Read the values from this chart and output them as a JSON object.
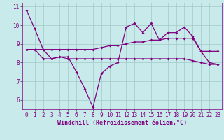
{
  "line1": [
    10.8,
    9.8,
    8.7,
    8.2,
    8.3,
    8.3,
    7.5,
    6.6,
    5.6,
    7.4,
    7.8,
    8.0,
    9.9,
    10.1,
    9.6,
    10.1,
    9.2,
    9.6,
    9.6,
    9.9,
    9.4,
    8.6,
    8.0,
    7.9
  ],
  "line2": [
    8.7,
    8.7,
    8.7,
    8.7,
    8.7,
    8.7,
    8.7,
    8.7,
    8.7,
    8.8,
    8.9,
    8.9,
    9.0,
    9.1,
    9.1,
    9.2,
    9.2,
    9.3,
    9.3,
    9.3,
    9.3,
    8.6,
    8.6,
    8.6
  ],
  "line3": [
    8.7,
    8.7,
    8.2,
    8.2,
    8.3,
    8.2,
    8.2,
    8.2,
    8.2,
    8.2,
    8.2,
    8.2,
    8.2,
    8.2,
    8.2,
    8.2,
    8.2,
    8.2,
    8.2,
    8.2,
    8.1,
    8.0,
    7.9,
    7.9
  ],
  "x": [
    0,
    1,
    2,
    3,
    4,
    5,
    6,
    7,
    8,
    9,
    10,
    11,
    12,
    13,
    14,
    15,
    16,
    17,
    18,
    19,
    20,
    21,
    22,
    23
  ],
  "line_color": "#800080",
  "bg_color": "#c8eaea",
  "grid_color": "#a0c8c8",
  "xlabel": "Windchill (Refroidissement éolien,°C)",
  "ylim": [
    5.5,
    11.2
  ],
  "xlim": [
    -0.5,
    23.5
  ],
  "yticks": [
    6,
    7,
    8,
    9,
    10,
    11
  ],
  "xticks": [
    0,
    1,
    2,
    3,
    4,
    5,
    6,
    7,
    8,
    9,
    10,
    11,
    12,
    13,
    14,
    15,
    16,
    17,
    18,
    19,
    20,
    21,
    22,
    23
  ],
  "marker": "D",
  "markersize": 2,
  "linewidth": 0.9,
  "tick_fontsize": 5.5,
  "xlabel_fontsize": 6
}
